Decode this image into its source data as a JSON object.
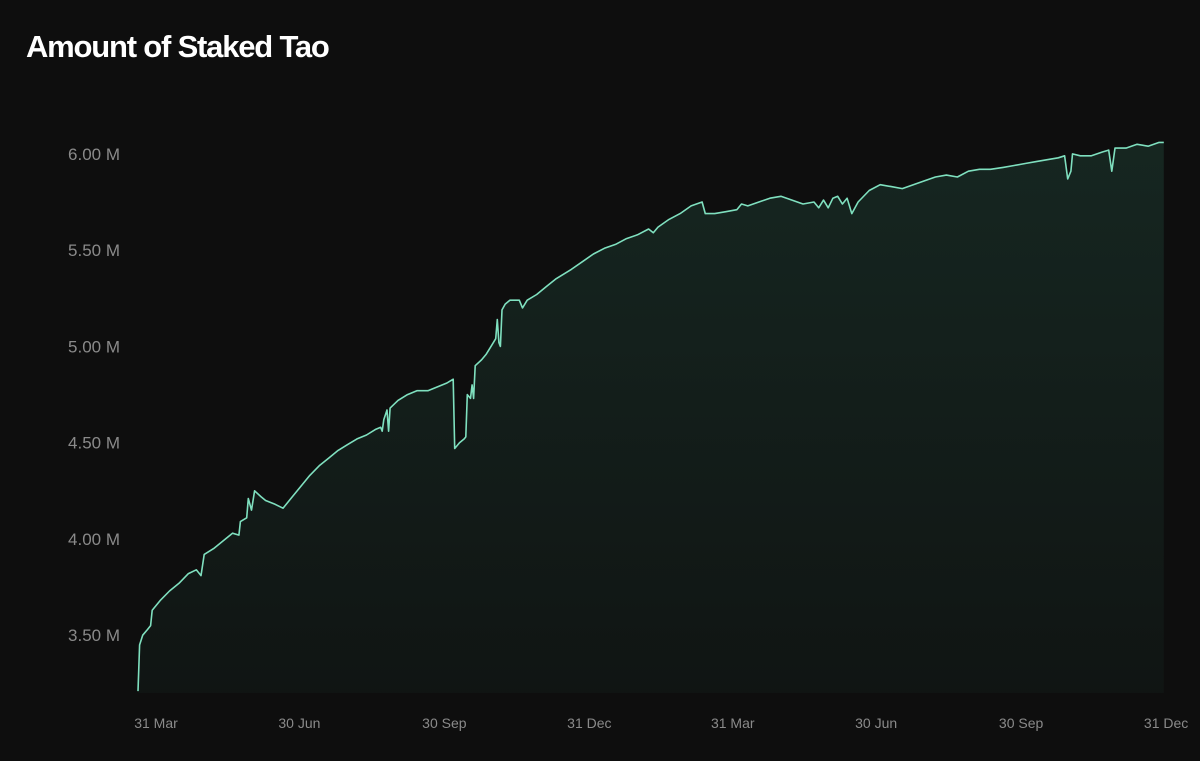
{
  "chart_data": {
    "type": "area",
    "title": "Amount of Staked Tao",
    "xlabel": "",
    "ylabel": "",
    "grid": false,
    "legend": "none",
    "line_color": "#7fe0bf",
    "fill_color": "#1c3a30",
    "x_ticks": [
      {
        "date": "2023-03-31",
        "label": "31 Mar"
      },
      {
        "date": "2023-06-30",
        "label": "30 Jun"
      },
      {
        "date": "2023-09-30",
        "label": "30 Sep"
      },
      {
        "date": "2023-12-31",
        "label": "31 Dec"
      },
      {
        "date": "2024-03-31",
        "label": "31 Mar"
      },
      {
        "date": "2024-06-30",
        "label": "30 Jun"
      },
      {
        "date": "2024-09-30",
        "label": "30 Sep"
      },
      {
        "date": "2024-12-31",
        "label": "31 Dec"
      }
    ],
    "y_ticks": [
      {
        "value": 3500000,
        "label": "3.50 M"
      },
      {
        "value": 4000000,
        "label": "4.00 M"
      },
      {
        "value": 4500000,
        "label": "4.50 M"
      },
      {
        "value": 5000000,
        "label": "5.00 M"
      },
      {
        "value": 5500000,
        "label": "5.50 M"
      },
      {
        "value": 6000000,
        "label": "6.00 M"
      }
    ],
    "xlim": [
      "2023-03-31",
      "2025-01-12"
    ],
    "ylim": [
      3200000,
      6280000
    ],
    "series": [
      {
        "points": [
          [
            "2023-03-31",
            3.21
          ],
          [
            "2023-04-01",
            3.45
          ],
          [
            "2023-04-03",
            3.5
          ],
          [
            "2023-04-06",
            3.53
          ],
          [
            "2023-04-08",
            3.55
          ],
          [
            "2023-04-09",
            3.63
          ],
          [
            "2023-04-14",
            3.68
          ],
          [
            "2023-04-20",
            3.73
          ],
          [
            "2023-04-26",
            3.77
          ],
          [
            "2023-05-02",
            3.82
          ],
          [
            "2023-05-07",
            3.84
          ],
          [
            "2023-05-10",
            3.81
          ],
          [
            "2023-05-12",
            3.92
          ],
          [
            "2023-05-18",
            3.95
          ],
          [
            "2023-05-24",
            3.99
          ],
          [
            "2023-05-30",
            4.03
          ],
          [
            "2023-06-03",
            4.02
          ],
          [
            "2023-06-04",
            4.09
          ],
          [
            "2023-06-08",
            4.11
          ],
          [
            "2023-06-09",
            4.21
          ],
          [
            "2023-06-11",
            4.15
          ],
          [
            "2023-06-13",
            4.25
          ],
          [
            "2023-06-17",
            4.22
          ],
          [
            "2023-06-20",
            4.2
          ],
          [
            "2023-06-26",
            4.18
          ],
          [
            "2023-07-01",
            4.16
          ],
          [
            "2023-07-06",
            4.21
          ],
          [
            "2023-07-12",
            4.27
          ],
          [
            "2023-07-18",
            4.33
          ],
          [
            "2023-07-24",
            4.38
          ],
          [
            "2023-07-30",
            4.42
          ],
          [
            "2023-08-05",
            4.46
          ],
          [
            "2023-08-11",
            4.49
          ],
          [
            "2023-08-17",
            4.52
          ],
          [
            "2023-08-23",
            4.54
          ],
          [
            "2023-08-29",
            4.57
          ],
          [
            "2023-09-01",
            4.58
          ],
          [
            "2023-09-02",
            4.56
          ],
          [
            "2023-09-03",
            4.62
          ],
          [
            "2023-09-05",
            4.67
          ],
          [
            "2023-09-06",
            4.56
          ],
          [
            "2023-09-07",
            4.68
          ],
          [
            "2023-09-12",
            4.72
          ],
          [
            "2023-09-18",
            4.75
          ],
          [
            "2023-09-24",
            4.77
          ],
          [
            "2023-10-01",
            4.77
          ],
          [
            "2023-10-07",
            4.79
          ],
          [
            "2023-10-13",
            4.81
          ],
          [
            "2023-10-17",
            4.83
          ],
          [
            "2023-10-18",
            4.47
          ],
          [
            "2023-10-21",
            4.5
          ],
          [
            "2023-10-24",
            4.52
          ],
          [
            "2023-10-25",
            4.53
          ],
          [
            "2023-10-26",
            4.75
          ],
          [
            "2023-10-28",
            4.73
          ],
          [
            "2023-10-29",
            4.8
          ],
          [
            "2023-10-30",
            4.73
          ],
          [
            "2023-10-31",
            4.9
          ],
          [
            "2023-11-04",
            4.93
          ],
          [
            "2023-11-07",
            4.96
          ],
          [
            "2023-11-10",
            5.0
          ],
          [
            "2023-11-13",
            5.04
          ],
          [
            "2023-11-14",
            5.14
          ],
          [
            "2023-11-15",
            5.02
          ],
          [
            "2023-11-16",
            5.0
          ],
          [
            "2023-11-17",
            5.19
          ],
          [
            "2023-11-19",
            5.22
          ],
          [
            "2023-11-22",
            5.24
          ],
          [
            "2023-11-28",
            5.24
          ],
          [
            "2023-11-30",
            5.2
          ],
          [
            "2023-12-03",
            5.24
          ],
          [
            "2023-12-09",
            5.27
          ],
          [
            "2023-12-15",
            5.31
          ],
          [
            "2023-12-21",
            5.35
          ],
          [
            "2023-12-31",
            5.4
          ],
          [
            "2024-01-07",
            5.44
          ],
          [
            "2024-01-14",
            5.48
          ],
          [
            "2024-01-21",
            5.51
          ],
          [
            "2024-01-28",
            5.53
          ],
          [
            "2024-02-04",
            5.56
          ],
          [
            "2024-02-11",
            5.58
          ],
          [
            "2024-02-18",
            5.61
          ],
          [
            "2024-02-21",
            5.59
          ],
          [
            "2024-02-24",
            5.62
          ],
          [
            "2024-03-02",
            5.66
          ],
          [
            "2024-03-09",
            5.69
          ],
          [
            "2024-03-16",
            5.73
          ],
          [
            "2024-03-23",
            5.75
          ],
          [
            "2024-03-25",
            5.69
          ],
          [
            "2024-03-31",
            5.69
          ],
          [
            "2024-04-07",
            5.7
          ],
          [
            "2024-04-14",
            5.71
          ],
          [
            "2024-04-17",
            5.74
          ],
          [
            "2024-04-21",
            5.73
          ],
          [
            "2024-04-28",
            5.75
          ],
          [
            "2024-05-05",
            5.77
          ],
          [
            "2024-05-12",
            5.78
          ],
          [
            "2024-05-19",
            5.76
          ],
          [
            "2024-05-26",
            5.74
          ],
          [
            "2024-06-02",
            5.75
          ],
          [
            "2024-06-05",
            5.72
          ],
          [
            "2024-06-08",
            5.76
          ],
          [
            "2024-06-11",
            5.72
          ],
          [
            "2024-06-14",
            5.77
          ],
          [
            "2024-06-17",
            5.78
          ],
          [
            "2024-06-20",
            5.74
          ],
          [
            "2024-06-23",
            5.77
          ],
          [
            "2024-06-26",
            5.69
          ],
          [
            "2024-06-30",
            5.75
          ],
          [
            "2024-07-07",
            5.81
          ],
          [
            "2024-07-14",
            5.84
          ],
          [
            "2024-07-21",
            5.83
          ],
          [
            "2024-07-28",
            5.82
          ],
          [
            "2024-08-04",
            5.84
          ],
          [
            "2024-08-11",
            5.86
          ],
          [
            "2024-08-18",
            5.88
          ],
          [
            "2024-08-25",
            5.89
          ],
          [
            "2024-09-01",
            5.88
          ],
          [
            "2024-09-08",
            5.91
          ],
          [
            "2024-09-15",
            5.92
          ],
          [
            "2024-09-22",
            5.92
          ],
          [
            "2024-09-30",
            5.93
          ],
          [
            "2024-10-07",
            5.94
          ],
          [
            "2024-10-14",
            5.95
          ],
          [
            "2024-10-21",
            5.96
          ],
          [
            "2024-10-28",
            5.97
          ],
          [
            "2024-11-04",
            5.98
          ],
          [
            "2024-11-08",
            5.99
          ],
          [
            "2024-11-10",
            5.87
          ],
          [
            "2024-11-12",
            5.91
          ],
          [
            "2024-11-13",
            6.0
          ],
          [
            "2024-11-18",
            5.99
          ],
          [
            "2024-11-25",
            5.99
          ],
          [
            "2024-12-02",
            6.01
          ],
          [
            "2024-12-06",
            6.02
          ],
          [
            "2024-12-08",
            5.91
          ],
          [
            "2024-12-10",
            6.03
          ],
          [
            "2024-12-17",
            6.03
          ],
          [
            "2024-12-24",
            6.05
          ],
          [
            "2024-12-31",
            6.04
          ],
          [
            "2025-01-07",
            6.06
          ],
          [
            "2025-01-10",
            6.06
          ]
        ]
      }
    ]
  }
}
